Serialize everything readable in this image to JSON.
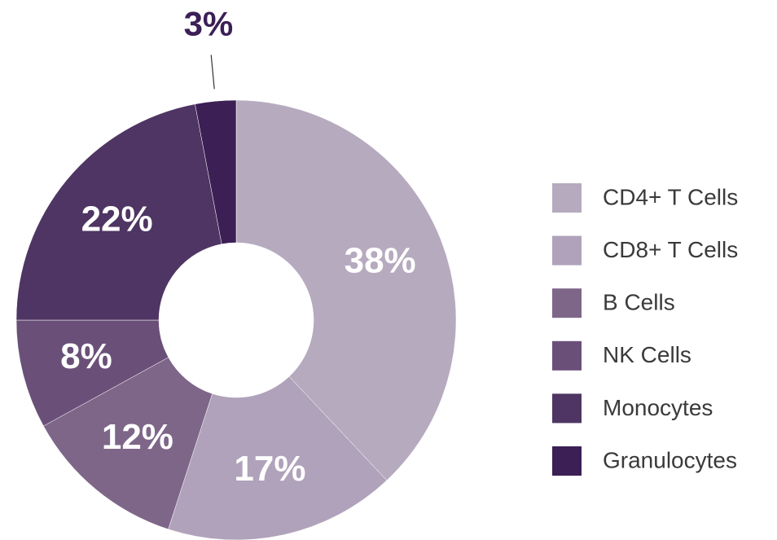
{
  "chart_data": {
    "type": "donut",
    "categories": [
      "CD4+ T Cells",
      "CD8+ T Cells",
      "B Cells",
      "NK Cells",
      "Monocytes",
      "Granulocytes"
    ],
    "values": [
      38,
      17,
      12,
      8,
      22,
      3
    ],
    "value_labels": [
      "38%",
      "17%",
      "12%",
      "8%",
      "22%",
      "3%"
    ],
    "colors": [
      "#b6aabf",
      "#b0a2ba",
      "#7e6689",
      "#6a5079",
      "#4e3563",
      "#3b1f55"
    ],
    "legend": "right"
  }
}
